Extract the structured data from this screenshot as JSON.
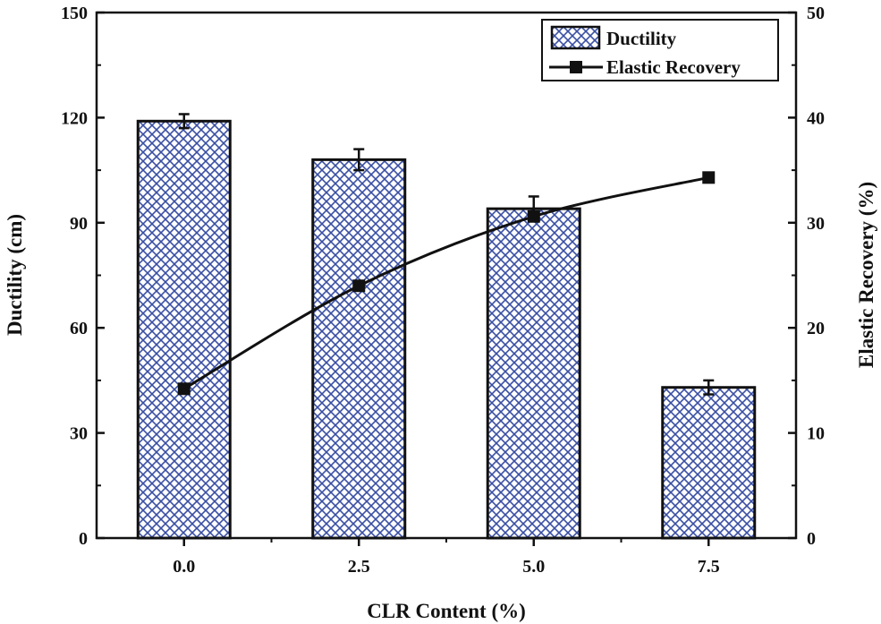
{
  "chart_data": {
    "type": "bar+line",
    "title": "",
    "xlabel": "CLR Content (%)",
    "ylabel_left": "Ductility (cm)",
    "ylabel_right": "Elastic Recovery (%)",
    "categories": [
      "0.0",
      "2.5",
      "5.0",
      "7.5"
    ],
    "ylim_left": [
      0,
      150
    ],
    "ylim_right": [
      0,
      50
    ],
    "yticks_left": [
      "0",
      "30",
      "60",
      "90",
      "120",
      "150"
    ],
    "yticks_right": [
      "0",
      "10",
      "20",
      "30",
      "40",
      "50"
    ],
    "series": [
      {
        "name": "Ductility",
        "type": "bar",
        "axis": "left",
        "values": [
          119,
          108,
          94,
          43
        ],
        "errors": [
          2,
          3,
          3.5,
          2
        ]
      },
      {
        "name": "Elastic Recovery",
        "type": "line",
        "axis": "right",
        "values": [
          14.2,
          24,
          30.6,
          34.3
        ]
      }
    ],
    "legend_position": "top-right",
    "grid": false
  },
  "colors": {
    "hatch": "#3a4fa3",
    "edge": "#111111",
    "background": "#ffffff"
  }
}
